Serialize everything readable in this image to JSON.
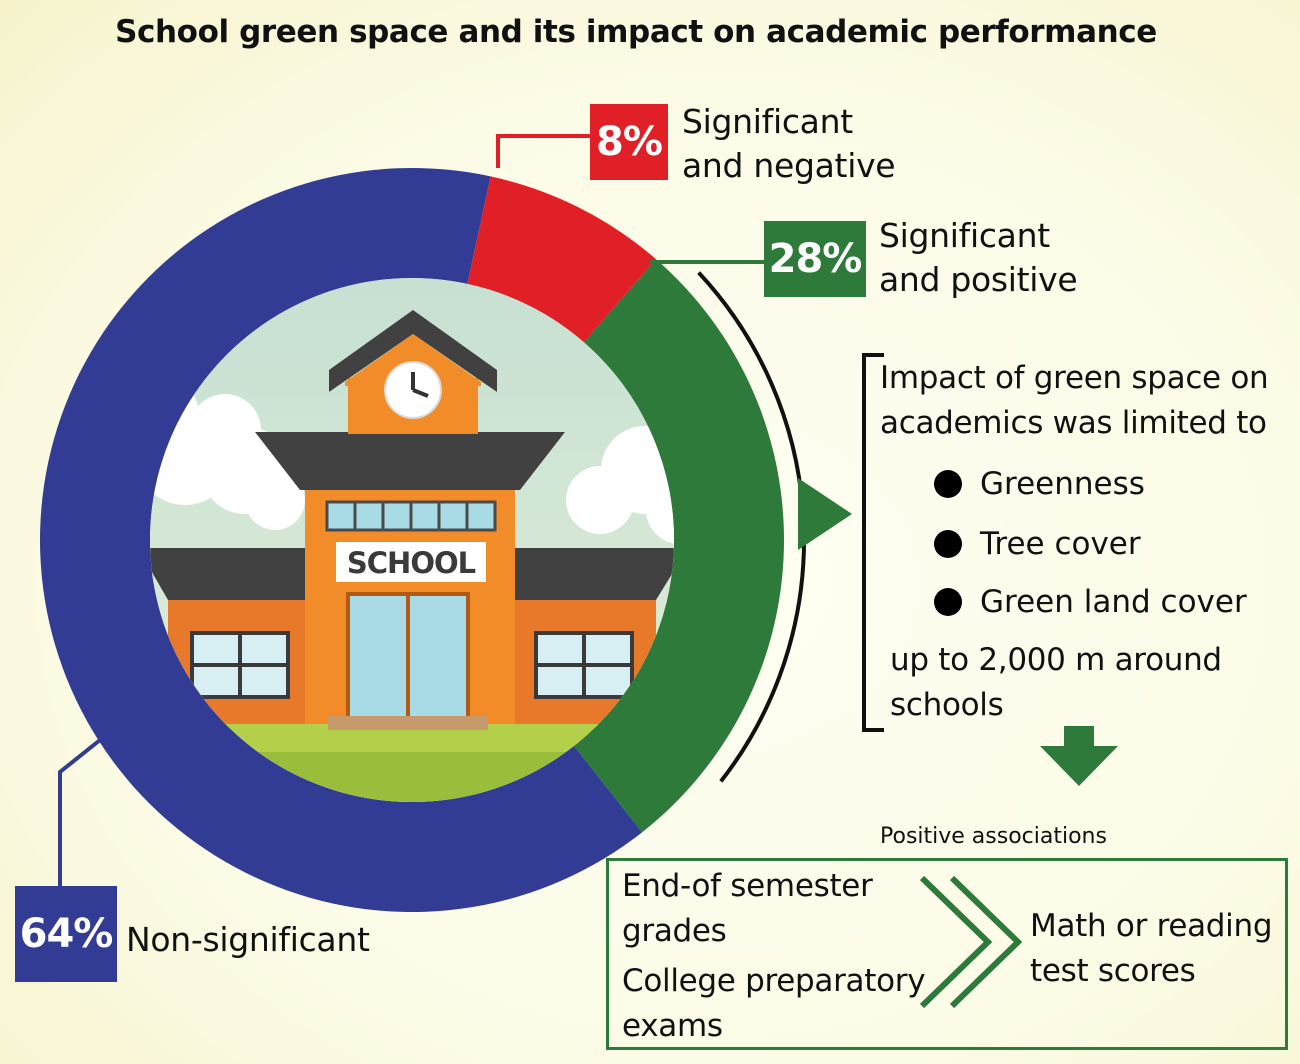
{
  "chart_data": {
    "type": "donut",
    "title": "School green space and its impact on academic performance",
    "slices": [
      {
        "label": "Significant and positive",
        "value": 28,
        "display": "28%",
        "label_lines": [
          "Significant",
          "and positive"
        ],
        "color": "#2e7a3a"
      },
      {
        "label": "Non-significant",
        "value": 64,
        "display": "64%",
        "label_lines": [
          "Non-significant"
        ],
        "color": "#323c94"
      },
      {
        "label": "Significant and negative",
        "value": 8,
        "display": "8%",
        "label_lines": [
          "Significant",
          "and negative"
        ],
        "color": "#e01f26"
      }
    ],
    "center_illustration": "school building",
    "school_sign": "SCHOOL"
  },
  "limits_box": {
    "intro": [
      "Impact of green space on",
      "academics was limited to"
    ],
    "bullets": [
      "Greenness",
      "Tree cover",
      "Green land cover"
    ],
    "outro": [
      "up to 2,000 m around",
      "schools"
    ]
  },
  "associations": {
    "title": "Positive associations",
    "left_items": [
      [
        "End-of semester",
        "grades"
      ],
      [
        "College preparatory",
        "exams"
      ]
    ],
    "right_item": [
      "Math or reading",
      "test scores"
    ]
  },
  "colors": {
    "positive": "#2e7a3a",
    "non_significant": "#323c94",
    "negative": "#e01f26"
  }
}
